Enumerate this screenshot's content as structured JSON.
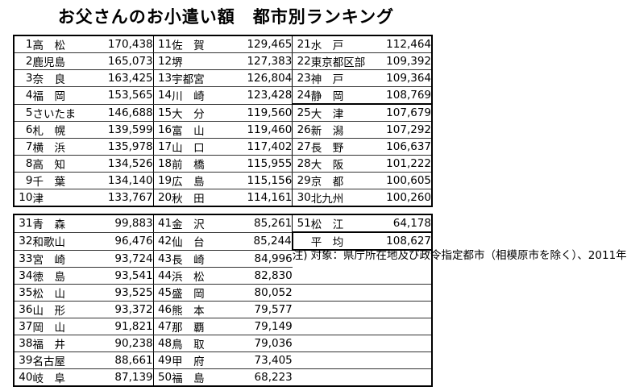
{
  "title": "お父さんのお小遣い額　都市別ランキング",
  "top": [
    [
      {
        "n": "1",
        "c": "高　松",
        "v": "170,438"
      },
      {
        "n": "11",
        "c": "佐　賀",
        "v": "129,465"
      },
      {
        "n": "21",
        "c": "水　戸",
        "v": "112,464"
      }
    ],
    [
      {
        "n": "2",
        "c": "鹿児島",
        "v": "165,073"
      },
      {
        "n": "12",
        "c": "堺",
        "v": "127,383"
      },
      {
        "n": "22",
        "c": "東京都区部",
        "v": "109,392"
      }
    ],
    [
      {
        "n": "3",
        "c": "奈　良",
        "v": "163,425"
      },
      {
        "n": "13",
        "c": "宇都宮",
        "v": "126,804"
      },
      {
        "n": "23",
        "c": "神　戸",
        "v": "109,364"
      }
    ],
    [
      {
        "n": "4",
        "c": "福　岡",
        "v": "153,565"
      },
      {
        "n": "14",
        "c": "川　崎",
        "v": "123,428"
      },
      {
        "n": "24",
        "c": "静　岡",
        "v": "108,769"
      }
    ],
    [
      {
        "n": "5",
        "c": "さいたま",
        "v": "146,688"
      },
      {
        "n": "15",
        "c": "大　分",
        "v": "119,560"
      },
      {
        "n": "25",
        "c": "大　津",
        "v": "107,679"
      }
    ],
    [
      {
        "n": "6",
        "c": "札　幌",
        "v": "139,599"
      },
      {
        "n": "16",
        "c": "富　山",
        "v": "119,460"
      },
      {
        "n": "26",
        "c": "新　潟",
        "v": "107,292"
      }
    ],
    [
      {
        "n": "7",
        "c": "横　浜",
        "v": "135,978"
      },
      {
        "n": "17",
        "c": "山　口",
        "v": "117,402"
      },
      {
        "n": "27",
        "c": "長　野",
        "v": "106,637"
      }
    ],
    [
      {
        "n": "8",
        "c": "高　知",
        "v": "134,526"
      },
      {
        "n": "18",
        "c": "前　橋",
        "v": "115,955"
      },
      {
        "n": "28",
        "c": "大　阪",
        "v": "101,222"
      }
    ],
    [
      {
        "n": "9",
        "c": "千　葉",
        "v": "134,140"
      },
      {
        "n": "19",
        "c": "広　島",
        "v": "115,156"
      },
      {
        "n": "29",
        "c": "京　都",
        "v": "100,605"
      }
    ],
    [
      {
        "n": "10",
        "c": "津",
        "v": "133,767"
      },
      {
        "n": "20",
        "c": "秋　田",
        "v": "114,161"
      },
      {
        "n": "30",
        "c": "北九州",
        "v": "100,260"
      }
    ]
  ],
  "bottom": [
    [
      {
        "n": "31",
        "c": "青　森",
        "v": "99,883"
      },
      {
        "n": "41",
        "c": "金　沢",
        "v": "85,261"
      },
      {
        "n": "51",
        "c": "松　江",
        "v": "64,178"
      }
    ],
    [
      {
        "n": "32",
        "c": "和歌山",
        "v": "96,476"
      },
      {
        "n": "42",
        "c": "仙　台",
        "v": "85,244"
      }
    ],
    [
      {
        "n": "33",
        "c": "宮　崎",
        "v": "93,724"
      },
      {
        "n": "43",
        "c": "長　崎",
        "v": "84,996"
      }
    ],
    [
      {
        "n": "34",
        "c": "徳　島",
        "v": "93,541"
      },
      {
        "n": "44",
        "c": "浜　松",
        "v": "82,830"
      }
    ],
    [
      {
        "n": "35",
        "c": "松　山",
        "v": "93,525"
      },
      {
        "n": "45",
        "c": "盛　岡",
        "v": "80,052"
      }
    ],
    [
      {
        "n": "36",
        "c": "山　形",
        "v": "93,372"
      },
      {
        "n": "46",
        "c": "熊　本",
        "v": "79,577"
      }
    ],
    [
      {
        "n": "37",
        "c": "岡　山",
        "v": "91,821"
      },
      {
        "n": "47",
        "c": "那　覇",
        "v": "79,149"
      }
    ],
    [
      {
        "n": "38",
        "c": "福　井",
        "v": "90,238"
      },
      {
        "n": "48",
        "c": "鳥　取",
        "v": "79,036"
      }
    ],
    [
      {
        "n": "39",
        "c": "名古屋",
        "v": "88,661"
      },
      {
        "n": "49",
        "c": "甲　府",
        "v": "73,405"
      }
    ],
    [
      {
        "n": "40",
        "c": "岐　阜",
        "v": "87,139"
      },
      {
        "n": "50",
        "c": "福　島",
        "v": "68,223"
      }
    ]
  ],
  "average": {
    "label": "平　均",
    "value": "108,627"
  },
  "note": {
    "prefix": "注)",
    "text": "対象：県庁所在地及び政令指定都市（相模原市を除く）、2011年"
  }
}
